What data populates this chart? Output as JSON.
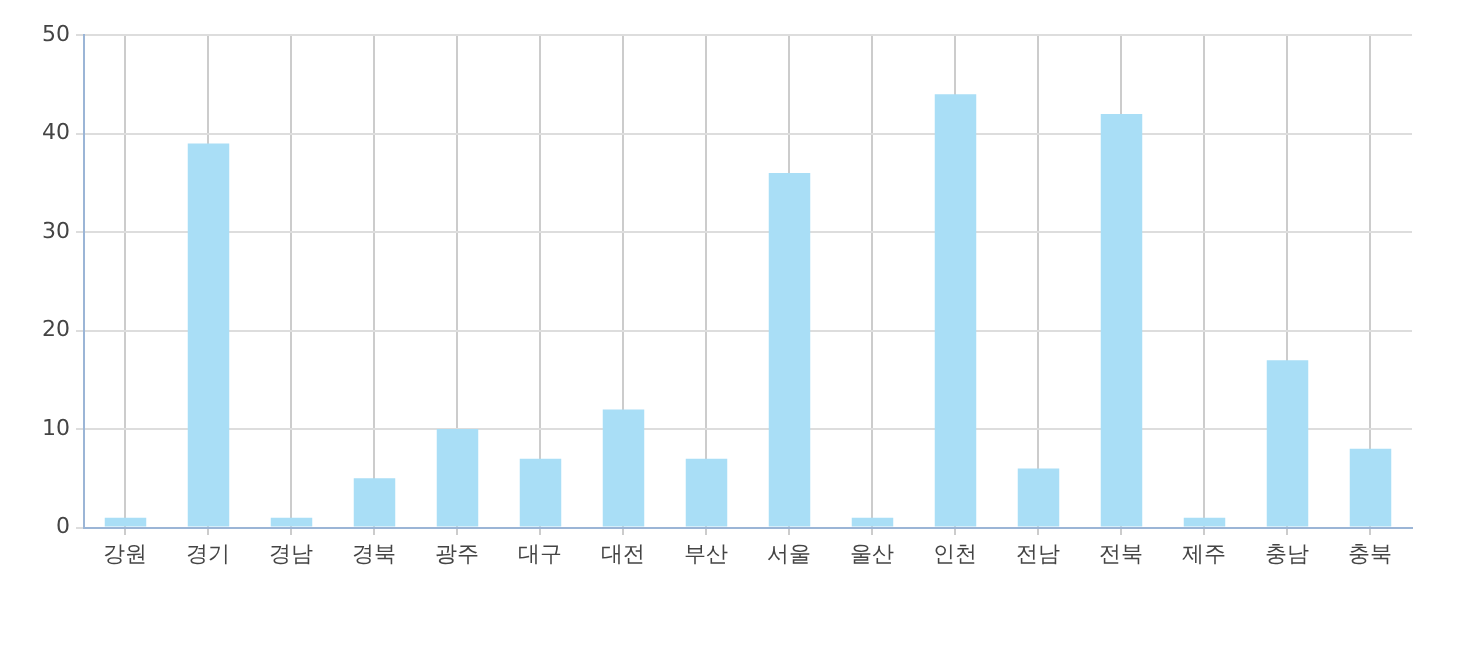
{
  "chart_data": {
    "type": "bar",
    "categories": [
      "강원",
      "경기",
      "경남",
      "경북",
      "광주",
      "대구",
      "대전",
      "부산",
      "서울",
      "울산",
      "인천",
      "전남",
      "전북",
      "제주",
      "충남",
      "충북"
    ],
    "series": [
      {
        "color": "#a9def6",
        "values": [
          1,
          39,
          1,
          5,
          10,
          7,
          12,
          7,
          36,
          1,
          44,
          6,
          42,
          1,
          17,
          8
        ]
      }
    ],
    "ylim": [
      0,
      50
    ],
    "yticks": [
      0,
      10,
      20,
      30,
      40,
      50
    ],
    "grid": true
  }
}
